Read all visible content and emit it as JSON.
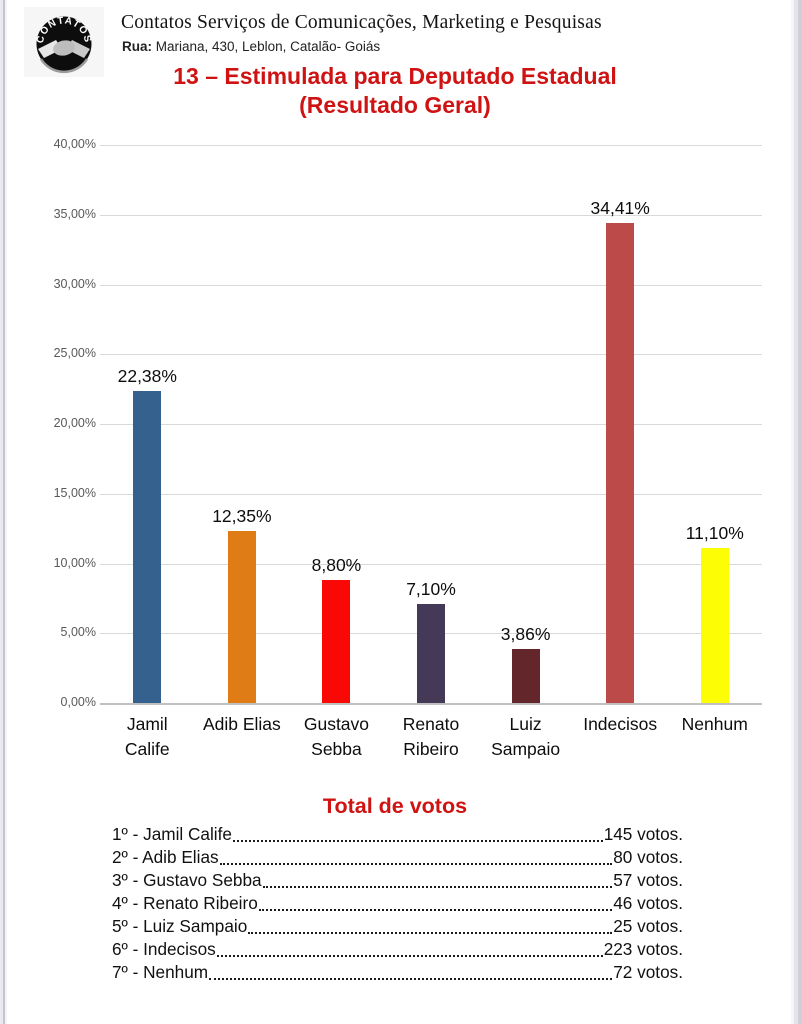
{
  "header": {
    "logo_text": "CONTATOS",
    "company_name": "Contatos Serviços de Comunicações, Marketing e Pesquisas",
    "address_label": "Rua:",
    "address_rest": " Mariana, 430, Leblon, Catalão- Goiás"
  },
  "title": {
    "line1": "13 – Estimulada para Deputado Estadual",
    "line2": "(Resultado Geral)"
  },
  "chart_data": {
    "type": "bar",
    "title": "13 – Estimulada para Deputado Estadual (Resultado Geral)",
    "ylim": [
      0,
      40
    ],
    "y_tick_step": 5,
    "grid": true,
    "legend": "none",
    "y_ticks_top_down": [
      "40,00%",
      "35,00%",
      "30,00%",
      "25,00%",
      "20,00%",
      "15,00%",
      "10,00%",
      "5,00%",
      "0,00%"
    ],
    "categories": [
      "Jamil Calife",
      "Adib Elias",
      "Gustavo Sebba",
      "Renato Ribeiro",
      "Luiz Sampaio",
      "Indecisos",
      "Nenhum"
    ],
    "bars": [
      {
        "category_lines": [
          "Jamil",
          "Calife"
        ],
        "value": 22.38,
        "value_label": "22,38%",
        "color": "#35618f"
      },
      {
        "category_lines": [
          "Adib Elias"
        ],
        "value": 12.35,
        "value_label": "12,35%",
        "color": "#e07c15"
      },
      {
        "category_lines": [
          "Gustavo",
          "Sebba"
        ],
        "value": 8.8,
        "value_label": "8,80%",
        "color": "#fa0805"
      },
      {
        "category_lines": [
          "Renato",
          "Ribeiro"
        ],
        "value": 7.1,
        "value_label": "7,10%",
        "color": "#443a58"
      },
      {
        "category_lines": [
          "Luiz",
          "Sampaio"
        ],
        "value": 3.86,
        "value_label": "3,86%",
        "color": "#63272b"
      },
      {
        "category_lines": [
          "Indecisos"
        ],
        "value": 34.41,
        "value_label": "34,41%",
        "color": "#bb4a48"
      },
      {
        "category_lines": [
          "Nenhum"
        ],
        "value": 11.1,
        "value_label": "11,10%",
        "color": "#fdfd05"
      }
    ]
  },
  "totals": {
    "heading": "Total de votos",
    "rows": [
      {
        "rank": "1º",
        "name": "Jamil Calife",
        "votes": "145 votos."
      },
      {
        "rank": "2º",
        "name": "Adib Elias",
        "votes": "80 votos."
      },
      {
        "rank": "3º",
        "name": "Gustavo Sebba",
        "votes": "57 votos."
      },
      {
        "rank": "4º",
        "name": "Renato Ribeiro",
        "votes": "46 votos."
      },
      {
        "rank": "5º",
        "name": "Luiz Sampaio",
        "votes": "25 votos."
      },
      {
        "rank": "6º",
        "name": "Indecisos",
        "votes": "223 votos."
      },
      {
        "rank": "7º",
        "name": "Nenhum",
        "votes": "72 votos."
      }
    ]
  },
  "colors": {
    "accent_red": "#cf1313",
    "gridline": "#d9d9d9",
    "axis_text": "#595959",
    "logo_background": "#0d0d0d"
  }
}
